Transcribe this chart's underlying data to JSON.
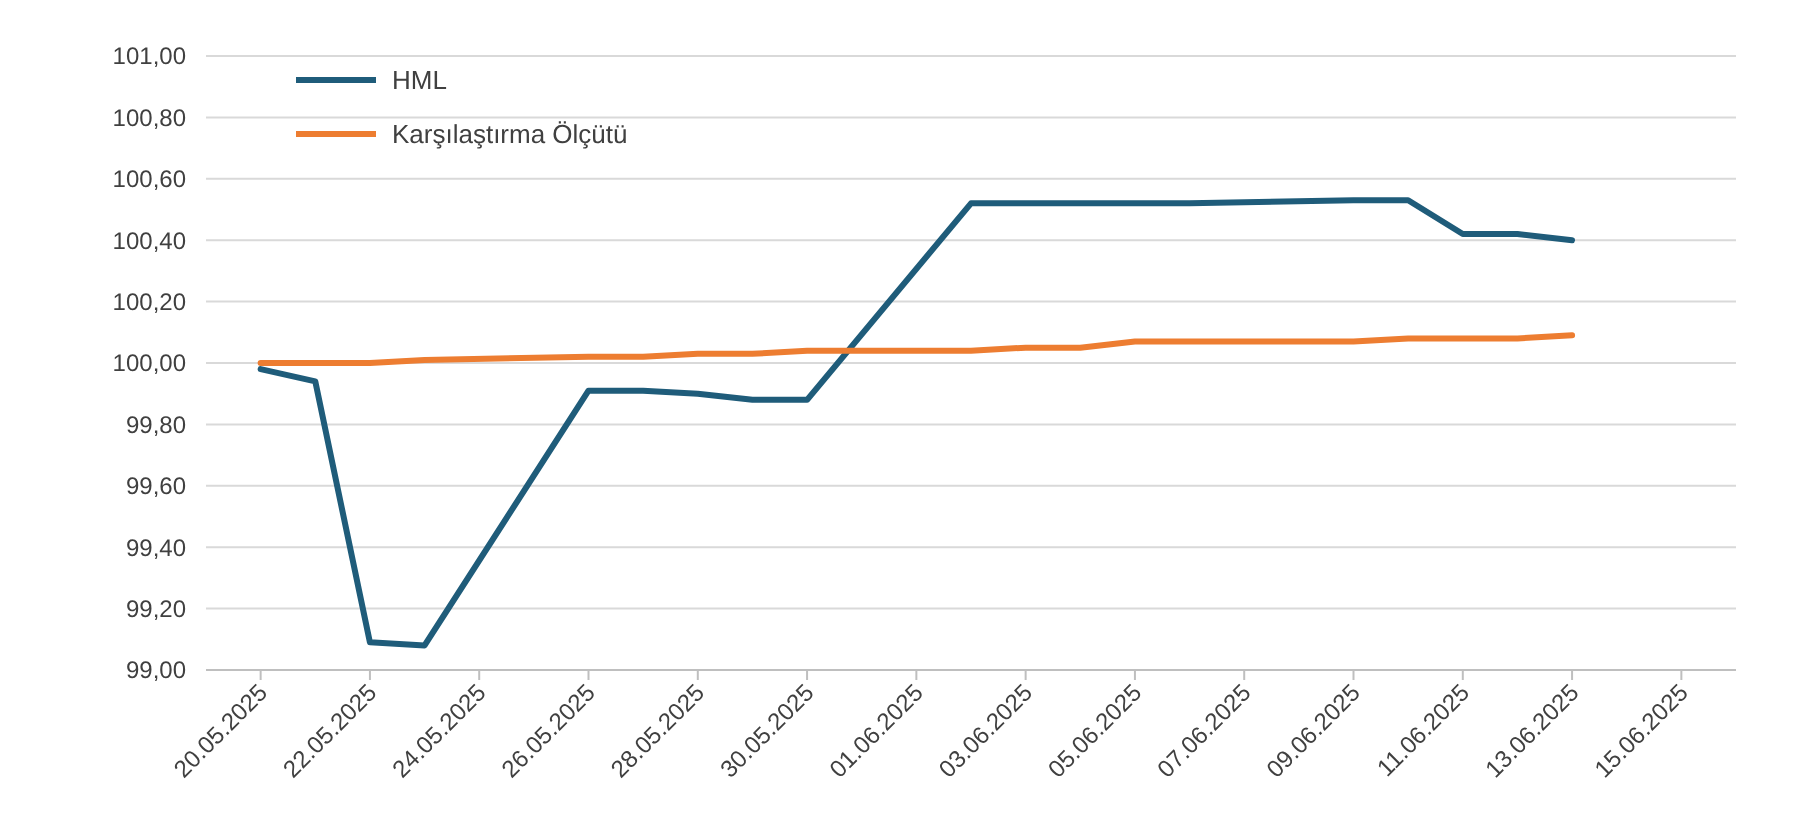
{
  "chart_data": {
    "type": "line",
    "x": [
      "2025-05-20",
      "2025-05-21",
      "2025-05-22",
      "2025-05-23",
      "2025-05-26",
      "2025-05-27",
      "2025-05-28",
      "2025-05-29",
      "2025-05-30",
      "2025-06-02",
      "2025-06-03",
      "2025-06-04",
      "2025-06-05",
      "2025-06-06",
      "2025-06-09",
      "2025-06-10",
      "2025-06-11",
      "2025-06-12",
      "2025-06-13"
    ],
    "series": [
      {
        "name": "HML",
        "color": "#1f5c7a",
        "values": [
          99.98,
          99.94,
          99.09,
          99.08,
          99.91,
          99.91,
          99.9,
          99.88,
          99.88,
          100.52,
          100.52,
          100.52,
          100.52,
          100.52,
          100.53,
          100.53,
          100.42,
          100.42,
          100.4
        ]
      },
      {
        "name": "Karşılaştırma Ölçütü",
        "color": "#ed7d31",
        "values": [
          100.0,
          100.0,
          100.0,
          100.01,
          100.02,
          100.02,
          100.03,
          100.03,
          100.04,
          100.04,
          100.05,
          100.05,
          100.07,
          100.07,
          100.07,
          100.08,
          100.08,
          100.08,
          100.09
        ]
      }
    ],
    "xlim": [
      "2025-05-19",
      "2025-06-16"
    ],
    "xticks": [
      {
        "value": "2025-05-20",
        "label": "20.05.2025"
      },
      {
        "value": "2025-05-22",
        "label": "22.05.2025"
      },
      {
        "value": "2025-05-24",
        "label": "24.05.2025"
      },
      {
        "value": "2025-05-26",
        "label": "26.05.2025"
      },
      {
        "value": "2025-05-28",
        "label": "28.05.2025"
      },
      {
        "value": "2025-05-30",
        "label": "30.05.2025"
      },
      {
        "value": "2025-06-01",
        "label": "01.06.2025"
      },
      {
        "value": "2025-06-03",
        "label": "03.06.2025"
      },
      {
        "value": "2025-06-05",
        "label": "05.06.2025"
      },
      {
        "value": "2025-06-07",
        "label": "07.06.2025"
      },
      {
        "value": "2025-06-09",
        "label": "09.06.2025"
      },
      {
        "value": "2025-06-11",
        "label": "11.06.2025"
      },
      {
        "value": "2025-06-13",
        "label": "13.06.2025"
      },
      {
        "value": "2025-06-15",
        "label": "15.06.2025"
      }
    ],
    "ylim": [
      99,
      101
    ],
    "yticks": [
      {
        "value": 99,
        "label": "99,00"
      },
      {
        "value": 99.2,
        "label": "99,20"
      },
      {
        "value": 99.4,
        "label": "99,40"
      },
      {
        "value": 99.6,
        "label": "99,60"
      },
      {
        "value": 99.8,
        "label": "99,80"
      },
      {
        "value": 100,
        "label": "100,00"
      },
      {
        "value": 100.2,
        "label": "100,20"
      },
      {
        "value": 100.4,
        "label": "100,40"
      },
      {
        "value": 100.6,
        "label": "100,60"
      },
      {
        "value": 100.8,
        "label": "100,80"
      },
      {
        "value": 101,
        "label": "101,00"
      }
    ],
    "grid": "y",
    "legend": "top left",
    "marker": "none",
    "line_style": "solid"
  }
}
